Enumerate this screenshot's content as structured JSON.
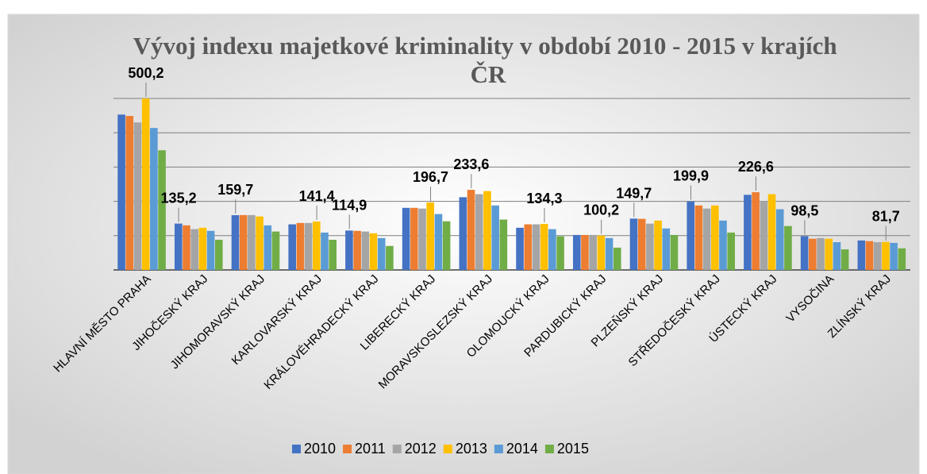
{
  "chart_data": {
    "type": "bar",
    "title": "Vývoj indexu majetkové kriminality v období 2010 - 2015 v krajích ČR",
    "categories": [
      "HLAVNÍ MĚSTO PRAHA",
      "JIHOČESKÝ KRAJ",
      "JIHOMORAVSKÝ KRAJ",
      "KARLOVARSKÝ KRAJ",
      "KRÁLOVÉHRADECKÝ KRAJ",
      "LIBERECKÝ KRAJ",
      "MORAVSKOSLEZSKÝ KRAJ",
      "OLOMOUCKÝ KRAJ",
      "PARDUBICKÝ KRAJ",
      "PLZEŇSKÝ KRAJ",
      "STŘEDOČESKÝ KRAJ",
      "ÚSTECKÝ KRAJ",
      "VYSOČINA",
      "ZLÍNSKÝ KRAJ"
    ],
    "series": [
      {
        "name": "2010",
        "color": "#4472c4",
        "values": [
          453,
          135.2,
          159.7,
          133,
          114.9,
          181,
          212,
          123,
          102,
          149.7,
          199.9,
          219,
          98.5,
          86
        ],
        "value_labels": [
          null,
          "135,2",
          "159,7",
          null,
          "114,9",
          null,
          null,
          null,
          null,
          "149,7",
          "199,9",
          null,
          "98,5",
          null
        ]
      },
      {
        "name": "2011",
        "color": "#ed7d31",
        "values": [
          449,
          130,
          160,
          137,
          114,
          181,
          233.6,
          133,
          102,
          149,
          188,
          226.6,
          91,
          84
        ],
        "value_labels": [
          null,
          null,
          null,
          null,
          null,
          null,
          "233,6",
          null,
          null,
          null,
          null,
          "226,6",
          null,
          null
        ]
      },
      {
        "name": "2012",
        "color": "#a5a5a5",
        "values": [
          430,
          119,
          160,
          137,
          112,
          179,
          221,
          133,
          102,
          135,
          179,
          200,
          93,
          81
        ]
      },
      {
        "name": "2013",
        "color": "#ffc000",
        "values": [
          500.2,
          123,
          156,
          141.4,
          107,
          196.7,
          230,
          134.3,
          100.2,
          144,
          188,
          221,
          91,
          81.7
        ],
        "value_labels": [
          "500,2",
          null,
          null,
          "141,4",
          null,
          "196,7",
          null,
          "134,3",
          "100,2",
          null,
          null,
          null,
          null,
          "81,7"
        ]
      },
      {
        "name": "2014",
        "color": "#5b9bd5",
        "values": [
          414,
          114,
          130,
          109,
          93,
          163,
          188,
          119,
          93,
          121,
          144,
          177,
          81,
          79
        ]
      },
      {
        "name": "2015",
        "color": "#70ad47",
        "values": [
          349,
          88,
          112,
          88,
          70,
          142,
          147,
          98,
          65,
          102,
          109,
          128,
          60,
          63
        ]
      }
    ],
    "ylim": [
      0,
      500
    ],
    "yticks": [
      0,
      100,
      200,
      300,
      400,
      500
    ],
    "grid": true
  }
}
